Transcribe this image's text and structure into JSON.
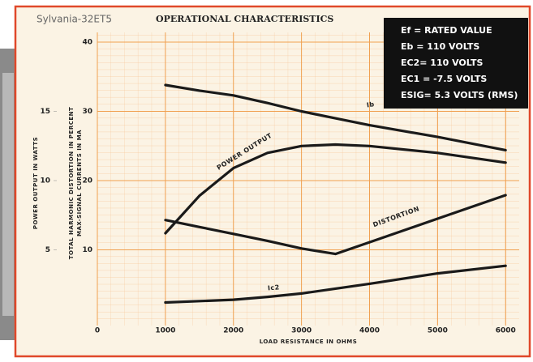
{
  "chart_data": {
    "type": "line",
    "brand": "Sylvania-32ET5",
    "title": "OPERATIONAL CHARACTERISTICS",
    "conditions": [
      "Ef = RATED VALUE",
      "Eb = 110 VOLTS",
      "EC2= 110 VOLTS",
      "EC1 = -7.5 VOLTS",
      "ESIG= 5.3 VOLTS (RMS)"
    ],
    "xlabel": "LOAD RESISTANCE IN OHMS",
    "ylabel": [
      "TOTAL HARMONIC DISTORTION IN PERCENT",
      "MAX-SIGNAL CURRENTS IN MA"
    ],
    "y2label": "POWER OUTPUT IN WATTS",
    "x": [
      1000,
      1500,
      2000,
      2500,
      3000,
      3500,
      4000,
      5000,
      6000
    ],
    "series": [
      {
        "name": "Ib",
        "color": "#1a1a1a",
        "values": [
          33.8,
          33.0,
          32.3,
          31.2,
          30.0,
          29.0,
          28.0,
          26.3,
          24.4
        ]
      },
      {
        "name": "POWER OUTPUT",
        "color": "#1a1a1a",
        "axis": "y2",
        "values": [
          6.2,
          8.9,
          10.9,
          12.0,
          12.5,
          12.6,
          12.5,
          12.0,
          11.3
        ]
      },
      {
        "name": "DISTORTION",
        "color": "#1a1a1a",
        "values": [
          14.3,
          13.3,
          12.3,
          11.3,
          10.2,
          9.4,
          11.1,
          14.5,
          17.9
        ]
      },
      {
        "name": "Ic2",
        "color": "#1a1a1a",
        "values": [
          2.4,
          2.6,
          2.8,
          3.2,
          3.7,
          4.4,
          5.1,
          6.6,
          7.7
        ]
      }
    ],
    "xlim": [
      0,
      6200
    ],
    "xticks": [
      0,
      1000,
      2000,
      3000,
      4000,
      5000,
      6000
    ],
    "ylim": [
      0,
      40
    ],
    "yticks": [
      10,
      20,
      30,
      40
    ],
    "y2lim": [
      0,
      20
    ],
    "y2ticks": [
      5,
      10,
      15
    ],
    "grid": true,
    "grid_color": "#f0a050"
  }
}
